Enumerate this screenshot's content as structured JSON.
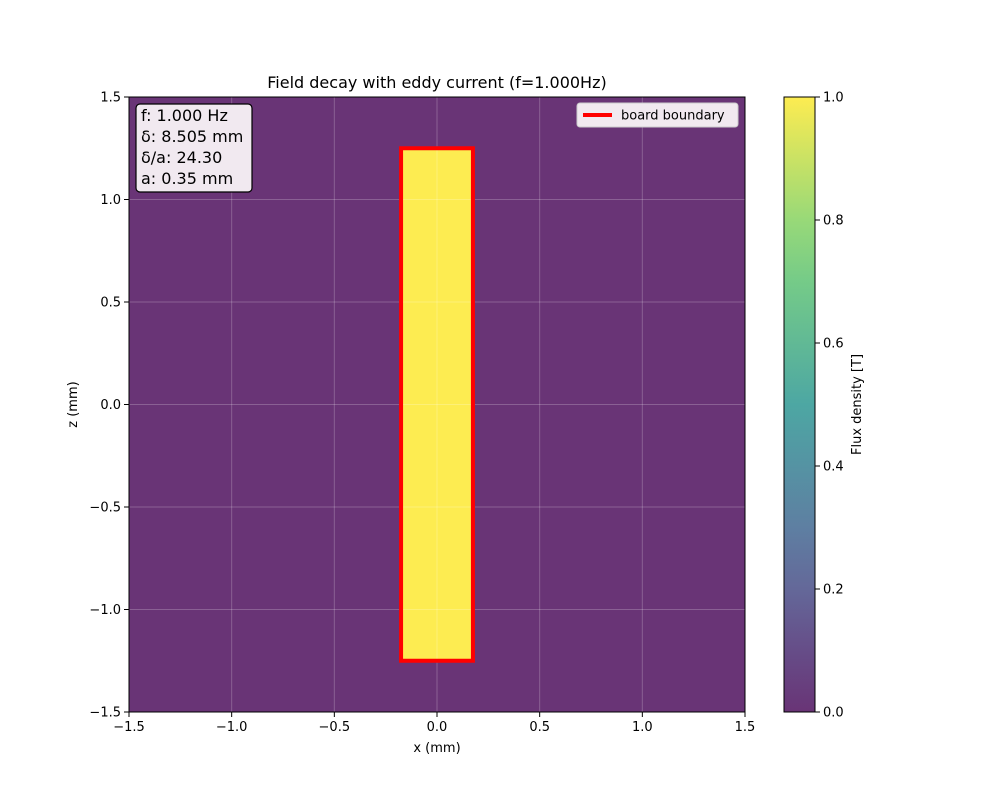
{
  "chart_data": {
    "type": "heatmap",
    "title": "Field decay with eddy current (f=1.000Hz)",
    "xlabel": "x (mm)",
    "ylabel": "z (mm)",
    "xlim": [
      -1.5,
      1.5
    ],
    "ylim": [
      -1.5,
      1.5
    ],
    "x_ticks": [
      -1.5,
      -1.0,
      -0.5,
      0.0,
      0.5,
      1.0,
      1.5
    ],
    "x_tick_labels": [
      "−1.5",
      "−1.0",
      "−0.5",
      "0.0",
      "0.5",
      "1.0",
      "1.5"
    ],
    "y_ticks": [
      -1.5,
      -1.0,
      -0.5,
      0.0,
      0.5,
      1.0,
      1.5
    ],
    "y_tick_labels": [
      "−1.5",
      "−1.0",
      "−0.5",
      "0.0",
      "0.5",
      "1.0",
      "1.5"
    ],
    "grid": true,
    "board": {
      "x_range": [
        -0.175,
        0.175
      ],
      "z_range": [
        -1.25,
        1.25
      ],
      "flux_density": 1.0
    },
    "background_flux_density": 0.0,
    "colorbar": {
      "label": "Flux density [T]",
      "range": [
        0.0,
        1.0
      ],
      "ticks": [
        0.0,
        0.2,
        0.4,
        0.6,
        0.8,
        1.0
      ],
      "tick_labels": [
        "0.0",
        "0.2",
        "0.4",
        "0.6",
        "0.8",
        "1.0"
      ],
      "colormap": "viridis",
      "alpha": 0.8
    },
    "legend": {
      "placement": "top-right",
      "entries": [
        {
          "label": "board boundary",
          "color": "#ff0000"
        }
      ]
    },
    "info_box": {
      "placement": "top-left",
      "lines": [
        "f: 1.000 Hz",
        "δ: 8.505 mm",
        "δ/a: 24.30",
        "a: 0.35 mm"
      ]
    }
  }
}
